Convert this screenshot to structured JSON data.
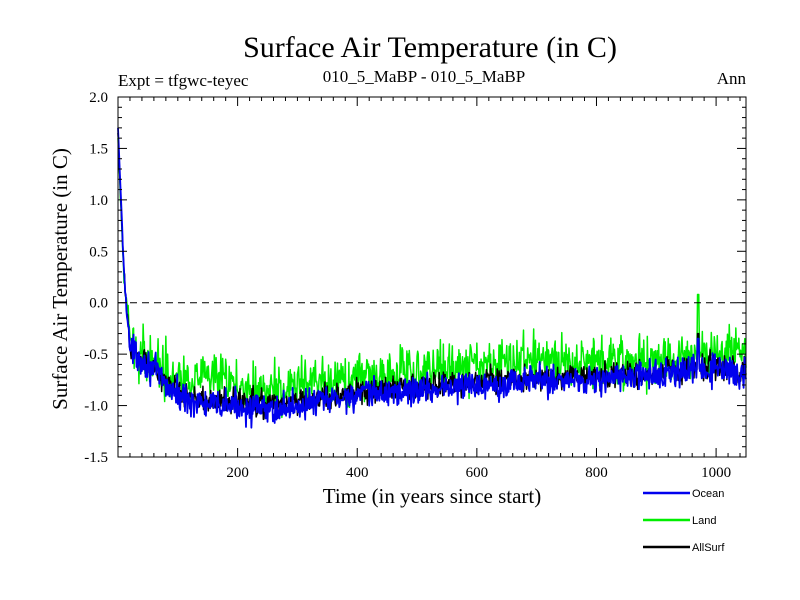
{
  "chart_data": {
    "type": "line",
    "title": "Surface Air Temperature (in C)",
    "subtitle_left": "Expt = tfgwc-teyec",
    "subtitle_center": "010_5_MaBP - 010_5_MaBP",
    "subtitle_right": "Ann",
    "xlabel": "Time (in years since start)",
    "ylabel": "Surface Air Temperature (in C)",
    "xlim": [
      0,
      1050
    ],
    "ylim": [
      -1.5,
      2.0
    ],
    "x_ticks": [
      200,
      400,
      600,
      800,
      1000
    ],
    "y_ticks": [
      -1.5,
      -1.0,
      -0.5,
      0.0,
      0.5,
      1.0,
      1.5,
      2.0
    ],
    "y_tick_labels": [
      "-1.5",
      "-1.0",
      "-0.5",
      "0.0",
      "0.5",
      "1.0",
      "1.5",
      "2.0"
    ],
    "reference_line": 0.0,
    "legend_position": "bottom-right",
    "n_years": 1050,
    "series": [
      {
        "name": "Ocean",
        "color": "#0000ee",
        "noise": 0.09,
        "spike": {
          "x": 970,
          "value": -0.35
        },
        "trend": [
          [
            0,
            1.7
          ],
          [
            5,
            1.0
          ],
          [
            10,
            0.3
          ],
          [
            20,
            -0.45
          ],
          [
            40,
            -0.55
          ],
          [
            60,
            -0.65
          ],
          [
            80,
            -0.8
          ],
          [
            100,
            -0.9
          ],
          [
            150,
            -1.0
          ],
          [
            200,
            -1.0
          ],
          [
            250,
            -1.05
          ],
          [
            300,
            -1.0
          ],
          [
            350,
            -0.95
          ],
          [
            400,
            -0.9
          ],
          [
            500,
            -0.85
          ],
          [
            600,
            -0.8
          ],
          [
            700,
            -0.75
          ],
          [
            800,
            -0.75
          ],
          [
            900,
            -0.7
          ],
          [
            1000,
            -0.65
          ],
          [
            1050,
            -0.7
          ]
        ]
      },
      {
        "name": "Land",
        "color": "#00ee00",
        "noise": 0.15,
        "spike": {
          "x": 970,
          "value": 0.08
        },
        "trend": [
          [
            0,
            1.6
          ],
          [
            5,
            0.9
          ],
          [
            10,
            0.25
          ],
          [
            20,
            -0.4
          ],
          [
            40,
            -0.5
          ],
          [
            60,
            -0.55
          ],
          [
            80,
            -0.65
          ],
          [
            100,
            -0.7
          ],
          [
            150,
            -0.75
          ],
          [
            200,
            -0.8
          ],
          [
            250,
            -0.85
          ],
          [
            300,
            -0.8
          ],
          [
            350,
            -0.8
          ],
          [
            400,
            -0.75
          ],
          [
            500,
            -0.65
          ],
          [
            600,
            -0.6
          ],
          [
            700,
            -0.55
          ],
          [
            800,
            -0.55
          ],
          [
            900,
            -0.55
          ],
          [
            1000,
            -0.5
          ],
          [
            1050,
            -0.45
          ]
        ]
      },
      {
        "name": "AllSurf",
        "color": "#000000",
        "noise": 0.08,
        "spike": {
          "x": 970,
          "value": -0.3
        },
        "trend": [
          [
            0,
            1.65
          ],
          [
            5,
            0.95
          ],
          [
            10,
            0.28
          ],
          [
            20,
            -0.43
          ],
          [
            40,
            -0.53
          ],
          [
            60,
            -0.62
          ],
          [
            80,
            -0.77
          ],
          [
            100,
            -0.86
          ],
          [
            150,
            -0.95
          ],
          [
            200,
            -0.96
          ],
          [
            250,
            -1.0
          ],
          [
            300,
            -0.96
          ],
          [
            350,
            -0.92
          ],
          [
            400,
            -0.87
          ],
          [
            500,
            -0.81
          ],
          [
            600,
            -0.77
          ],
          [
            700,
            -0.72
          ],
          [
            800,
            -0.72
          ],
          [
            900,
            -0.68
          ],
          [
            1000,
            -0.62
          ],
          [
            1050,
            -0.66
          ]
        ]
      }
    ]
  }
}
